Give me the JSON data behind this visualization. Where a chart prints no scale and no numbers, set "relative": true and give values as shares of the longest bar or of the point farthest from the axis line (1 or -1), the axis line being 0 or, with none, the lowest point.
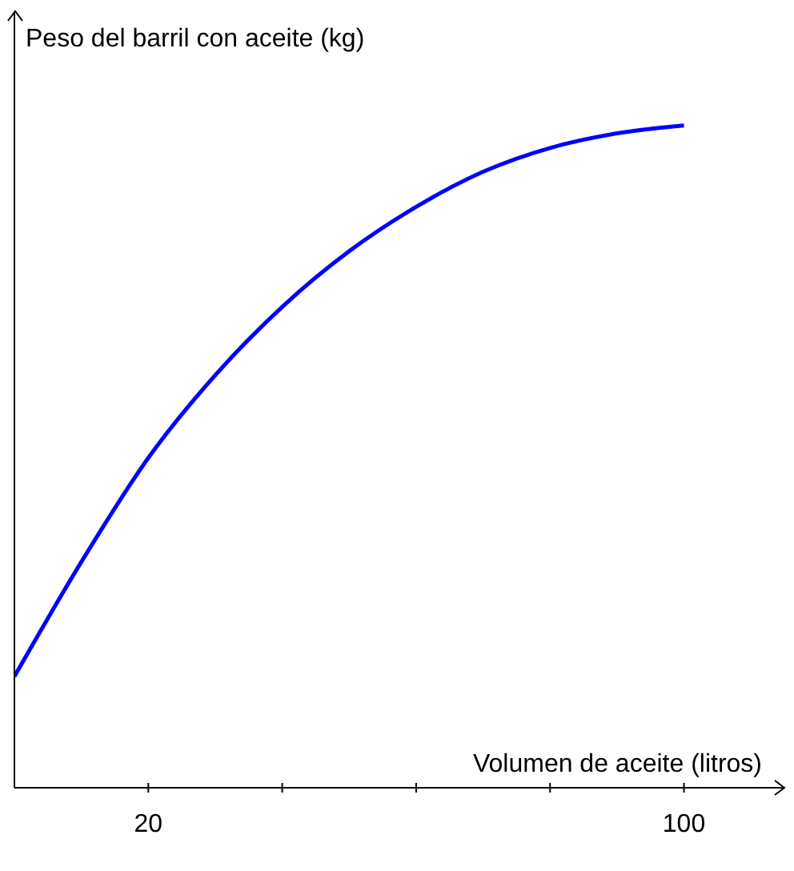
{
  "chart_data": {
    "type": "line",
    "relative": true,
    "xlabel": "Volumen de aceite (litros)",
    "ylabel": "Peso del barril con aceite (kg)",
    "xlim": [
      0,
      115
    ],
    "xticks": [
      20,
      {
        "value": 40,
        "label": null
      },
      {
        "value": 60,
        "label": null
      },
      {
        "value": 80,
        "label": null
      },
      100
    ],
    "series": [
      {
        "color": "#0000ff",
        "x": [
          0,
          10,
          20,
          30,
          40,
          50,
          60,
          70,
          80,
          90,
          100
        ],
        "values": [
          0.168,
          0.341,
          0.498,
          0.623,
          0.726,
          0.81,
          0.877,
          0.93,
          0.966,
          0.988,
          1
        ]
      }
    ],
    "grid": false,
    "legend": false,
    "marker": "none",
    "line_style": "solid"
  }
}
